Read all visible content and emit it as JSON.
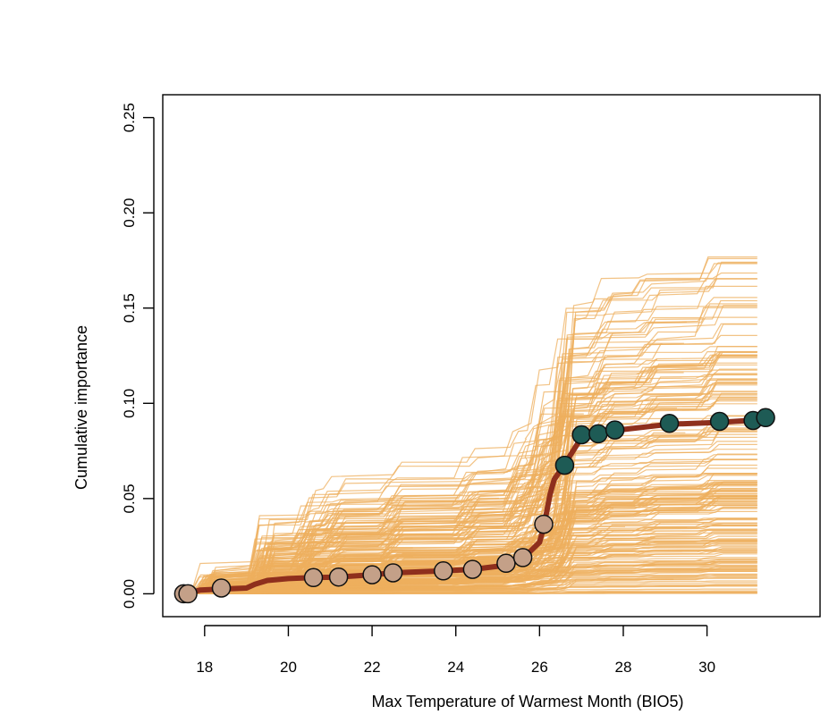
{
  "chart_data": {
    "type": "line",
    "title": "",
    "xlabel": "Max Temperature of Warmest Month (BIO5)",
    "ylabel": "Cumulative importance",
    "xlim": [
      17.0,
      32.7
    ],
    "ylim": [
      -0.012,
      0.262
    ],
    "x_ticks": [
      18,
      20,
      22,
      24,
      26,
      28,
      30
    ],
    "x_tick_labels": [
      "18",
      "20",
      "22",
      "24",
      "26",
      "28",
      "30"
    ],
    "y_ticks": [
      0.0,
      0.05,
      0.1,
      0.15,
      0.2,
      0.25
    ],
    "y_tick_labels": [
      "0.00",
      "0.05",
      "0.10",
      "0.15",
      "0.20",
      "0.25"
    ],
    "background_series": {
      "description": "many individual per-species cumulative importance curves",
      "color": "#EDAF5E",
      "count": 260,
      "x_range": [
        17.6,
        31.2
      ]
    },
    "mean_curve": {
      "name": "overall cumulative importance",
      "color": "#8E2F1D",
      "x": [
        17.55,
        17.9,
        18.4,
        19.0,
        19.2,
        19.5,
        20.0,
        20.6,
        21.2,
        22.0,
        22.5,
        23.7,
        24.4,
        25.2,
        25.6,
        26.0,
        26.1,
        26.25,
        26.35,
        26.6,
        27.0,
        27.4,
        27.8,
        29.1,
        30.3,
        31.0,
        31.3
      ],
      "y": [
        0.0,
        0.002,
        0.0025,
        0.003,
        0.005,
        0.007,
        0.008,
        0.0085,
        0.0088,
        0.01,
        0.011,
        0.012,
        0.0128,
        0.015,
        0.0185,
        0.027,
        0.035,
        0.052,
        0.06,
        0.068,
        0.082,
        0.0838,
        0.0858,
        0.089,
        0.09,
        0.091,
        0.092
      ]
    },
    "points": {
      "x": [
        17.5,
        17.6,
        18.4,
        20.6,
        21.2,
        22.0,
        22.5,
        23.7,
        24.4,
        25.2,
        25.6,
        26.1,
        26.6,
        27.0,
        27.4,
        27.8,
        29.1,
        30.3,
        31.1,
        31.4
      ],
      "y": [
        0.0,
        0.0,
        0.003,
        0.0085,
        0.0088,
        0.01,
        0.011,
        0.012,
        0.0128,
        0.016,
        0.019,
        0.0365,
        0.0675,
        0.0835,
        0.084,
        0.086,
        0.0895,
        0.0905,
        0.091,
        0.0925
      ],
      "colors": [
        "#C4A088",
        "#C4A088",
        "#C4A088",
        "#C4A088",
        "#C4A088",
        "#C4A088",
        "#C4A088",
        "#C4A088",
        "#C4A088",
        "#C4A088",
        "#C4A088",
        "#C4A088",
        "#1E5B55",
        "#1E5B55",
        "#1E5B55",
        "#1E5B55",
        "#1E5B55",
        "#1E5B55",
        "#1E5B55",
        "#1E5B55"
      ]
    }
  }
}
